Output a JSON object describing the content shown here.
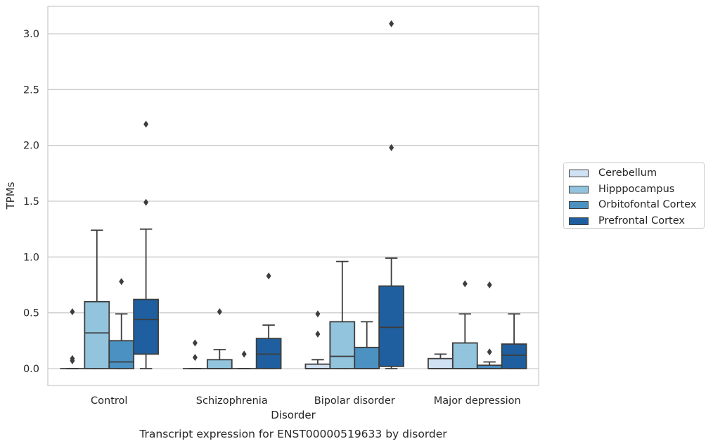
{
  "chart_data": {
    "type": "box",
    "title": "Transcript expression for ENST00000519633 by disorder",
    "xlabel": "Disorder",
    "ylabel": "TPMs",
    "ylim": [
      -0.15,
      3.25
    ],
    "yticks": [
      "0.0",
      "0.5",
      "1.0",
      "1.5",
      "2.0",
      "2.5",
      "3.0"
    ],
    "categories": [
      "Control",
      "Schizophrenia",
      "Bipolar disorder",
      "Major depression"
    ],
    "grid": "horizontal",
    "legend_position": "right",
    "series": [
      {
        "name": "Cerebellum",
        "color": "#cfe1f2",
        "boxes": [
          {
            "min": 0.0,
            "q1": 0.0,
            "median": 0.0,
            "q3": 0.0,
            "max": 0.0,
            "outliers": [
              0.51,
              0.09,
              0.07
            ]
          },
          {
            "min": 0.0,
            "q1": 0.0,
            "median": 0.0,
            "q3": 0.0,
            "max": 0.0,
            "outliers": [
              0.23,
              0.1
            ]
          },
          {
            "min": 0.0,
            "q1": 0.0,
            "median": 0.0,
            "q3": 0.04,
            "max": 0.08,
            "outliers": [
              0.49,
              0.31
            ]
          },
          {
            "min": 0.0,
            "q1": 0.0,
            "median": 0.0,
            "q3": 0.09,
            "max": 0.13,
            "outliers": []
          }
        ]
      },
      {
        "name": "Hipppocampus",
        "color": "#93c4de",
        "boxes": [
          {
            "min": 0.0,
            "q1": 0.0,
            "median": 0.32,
            "q3": 0.6,
            "max": 1.24,
            "outliers": []
          },
          {
            "min": 0.0,
            "q1": 0.0,
            "median": 0.0,
            "q3": 0.08,
            "max": 0.17,
            "outliers": [
              0.51
            ]
          },
          {
            "min": 0.0,
            "q1": 0.0,
            "median": 0.11,
            "q3": 0.42,
            "max": 0.96,
            "outliers": []
          },
          {
            "min": 0.0,
            "q1": 0.0,
            "median": 0.0,
            "q3": 0.23,
            "max": 0.49,
            "outliers": [
              0.76
            ]
          }
        ]
      },
      {
        "name": "Orbitofontal Cortex",
        "color": "#4b91c2",
        "boxes": [
          {
            "min": 0.0,
            "q1": 0.0,
            "median": 0.06,
            "q3": 0.25,
            "max": 0.49,
            "outliers": [
              0.78
            ]
          },
          {
            "min": 0.0,
            "q1": 0.0,
            "median": 0.0,
            "q3": 0.0,
            "max": 0.0,
            "outliers": [
              0.13
            ]
          },
          {
            "min": 0.0,
            "q1": 0.0,
            "median": 0.0,
            "q3": 0.19,
            "max": 0.42,
            "outliers": []
          },
          {
            "min": 0.0,
            "q1": 0.0,
            "median": 0.0,
            "q3": 0.03,
            "max": 0.06,
            "outliers": [
              0.75,
              0.15
            ]
          }
        ]
      },
      {
        "name": "Prefrontal Cortex",
        "color": "#1f5f9f",
        "boxes": [
          {
            "min": 0.0,
            "q1": 0.13,
            "median": 0.44,
            "q3": 0.62,
            "max": 1.25,
            "outliers": [
              2.19,
              1.49
            ]
          },
          {
            "min": 0.0,
            "q1": 0.0,
            "median": 0.13,
            "q3": 0.27,
            "max": 0.39,
            "outliers": [
              0.83
            ]
          },
          {
            "min": 0.0,
            "q1": 0.02,
            "median": 0.37,
            "q3": 0.74,
            "max": 0.99,
            "outliers": [
              3.09,
              1.98
            ]
          },
          {
            "min": 0.0,
            "q1": 0.0,
            "median": 0.12,
            "q3": 0.22,
            "max": 0.49,
            "outliers": []
          }
        ]
      }
    ]
  }
}
